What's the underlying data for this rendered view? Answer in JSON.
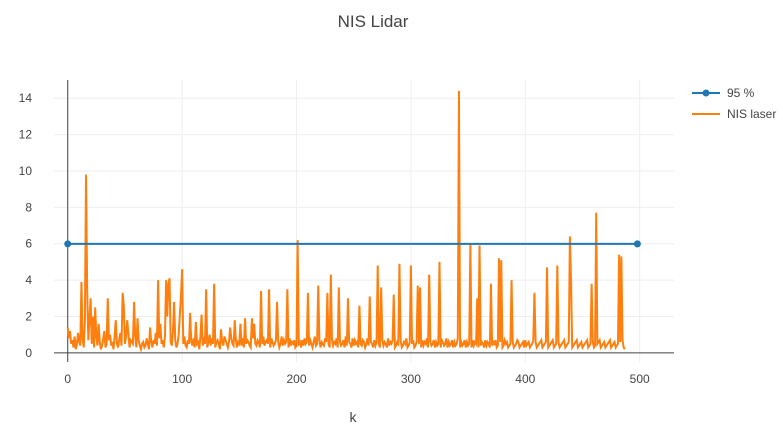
{
  "chart_data": {
    "type": "line",
    "title": "NIS Lidar",
    "xlabel": "k",
    "ylabel": "",
    "xlim": [
      -12,
      530
    ],
    "ylim": [
      -0.5,
      15.0
    ],
    "xticks": [
      0,
      100,
      200,
      300,
      400,
      500
    ],
    "yticks": [
      0,
      2,
      4,
      6,
      8,
      10,
      12,
      14
    ],
    "grid": true,
    "legend_position": "top-right",
    "series": [
      {
        "name": "95 %",
        "color": "#1f77b4",
        "mode": "lines+markers",
        "x": [
          0,
          498
        ],
        "y": [
          5.991,
          5.991
        ]
      },
      {
        "name": "NIS laser",
        "color": "#ff7f0e",
        "mode": "lines",
        "x_start": 0,
        "x_step": 1,
        "y": [
          1.4,
          0.8,
          1.2,
          0.5,
          0.7,
          0.3,
          0.9,
          0.2,
          0.5,
          1.1,
          0.6,
          0.4,
          3.9,
          0.8,
          0.3,
          1.7,
          9.8,
          3.5,
          0.7,
          1.8,
          3.0,
          0.5,
          2.0,
          0.3,
          2.5,
          0.9,
          0.4,
          1.6,
          0.6,
          0.2,
          0.4,
          0.8,
          1.2,
          0.3,
          0.5,
          3.0,
          0.7,
          1.0,
          0.4,
          0.6,
          0.2,
          0.9,
          1.8,
          0.5,
          0.3,
          0.7,
          1.1,
          0.4,
          3.3,
          2.6,
          0.5,
          0.9,
          1.8,
          1.1,
          0.3,
          0.7,
          0.6,
          0.5,
          2.8,
          0.9,
          0.3,
          1.9,
          0.7,
          0.4,
          0.2,
          0.5,
          0.6,
          0.3,
          0.4,
          0.8,
          0.5,
          0.2,
          1.4,
          0.6,
          0.3,
          0.7,
          0.5,
          1.1,
          0.4,
          4.0,
          0.8,
          1.6,
          0.5,
          0.7,
          0.3,
          0.9,
          4.0,
          2.0,
          3.8,
          4.1,
          0.6,
          0.4,
          1.2,
          2.8,
          0.7,
          0.3,
          0.5,
          1.0,
          2.1,
          3.1,
          4.6,
          0.5,
          0.9,
          0.4,
          0.3,
          0.7,
          0.5,
          2.2,
          0.6,
          0.4,
          0.8,
          0.3,
          1.7,
          0.5,
          0.6,
          0.2,
          0.9,
          2.1,
          0.4,
          0.7,
          0.5,
          3.5,
          0.3,
          0.6,
          1.0,
          0.4,
          0.8,
          0.5,
          3.8,
          0.3,
          0.6,
          0.7,
          0.5,
          0.2,
          1.3,
          0.6,
          0.4,
          0.9,
          0.7,
          0.5,
          0.3,
          0.6,
          1.4,
          0.8,
          0.5,
          0.4,
          1.8,
          0.7,
          0.3,
          0.6,
          0.5,
          1.6,
          0.4,
          0.8,
          0.3,
          1.9,
          0.5,
          0.7,
          0.6,
          0.4,
          0.3,
          1.9,
          0.8,
          1.6,
          0.5,
          0.4,
          0.7,
          0.6,
          0.3,
          3.4,
          0.5,
          0.9,
          0.4,
          0.6,
          0.7,
          0.5,
          3.5,
          0.3,
          0.8,
          0.6,
          0.4,
          0.5,
          0.7,
          2.8,
          0.6,
          0.3,
          0.5,
          0.9,
          0.4,
          0.7,
          0.5,
          0.6,
          3.5,
          0.3,
          0.8,
          0.4,
          0.6,
          0.5,
          0.7,
          0.3,
          0.4,
          6.2,
          0.5,
          0.6,
          0.3,
          0.7,
          0.4,
          0.8,
          0.5,
          0.6,
          3.3,
          0.4,
          0.7,
          0.5,
          0.3,
          0.6,
          0.9,
          0.4,
          0.5,
          3.7,
          0.7,
          0.3,
          0.6,
          0.5,
          0.4,
          0.8,
          0.6,
          3.3,
          0.5,
          0.3,
          4.3,
          0.7,
          0.4,
          0.6,
          0.5,
          0.8,
          0.3,
          3.6,
          0.6,
          0.4,
          0.5,
          0.7,
          0.3,
          0.9,
          0.4,
          3.0,
          0.6,
          0.5,
          0.3,
          0.8,
          0.4,
          0.7,
          0.5,
          0.6,
          0.3,
          2.6,
          0.5,
          0.4,
          0.7,
          0.6,
          0.3,
          0.5,
          0.8,
          0.4,
          3.1,
          0.6,
          0.5,
          0.3,
          0.7,
          0.4,
          0.6,
          4.8,
          0.5,
          0.3,
          3.6,
          0.7,
          0.4,
          0.6,
          0.5,
          0.3,
          0.8,
          0.4,
          0.6,
          0.5,
          0.7,
          3.2,
          0.3,
          0.4,
          0.6,
          0.5,
          4.9,
          0.7,
          0.3,
          0.4,
          0.6,
          0.5,
          0.8,
          0.3,
          0.4,
          0.6,
          4.8,
          0.5,
          0.7,
          0.3,
          0.4,
          0.6,
          3.7,
          0.5,
          3.6,
          0.3,
          0.7,
          0.4,
          0.6,
          0.5,
          0.8,
          0.3,
          4.3,
          0.6,
          0.4,
          0.5,
          0.7,
          0.3,
          0.6,
          0.4,
          0.5,
          5.0,
          0.3,
          0.7,
          0.6,
          0.4,
          0.5,
          0.8,
          0.3,
          0.6,
          0.4,
          0.5,
          0.7,
          0.3,
          0.6,
          0.4,
          0.5,
          0.8,
          14.4,
          0.3,
          0.6,
          0.4,
          0.5,
          0.7,
          0.3,
          0.6,
          0.4,
          0.5,
          6.0,
          0.3,
          0.7,
          0.4,
          0.6,
          0.5,
          3.0,
          0.3,
          5.9,
          0.4,
          0.6,
          0.5,
          0.3,
          0.7,
          0.4,
          0.6,
          0.5,
          0.3,
          3.8,
          0.4,
          0.6,
          0.5,
          0.7,
          0.3,
          0.4,
          5.2,
          0.6,
          5.1,
          0.3,
          0.4,
          0.7,
          0.5,
          0.6,
          0.3,
          0.4,
          0.5,
          4.0,
          0.6,
          0.3,
          0.4,
          0.5,
          0.7,
          0.6,
          0.3,
          0.4,
          0.5,
          0.6,
          0.3,
          0.7,
          0.4,
          0.5,
          0.6,
          0.3,
          0.4,
          0.5,
          0.7,
          3.3,
          0.6,
          0.3,
          0.4,
          0.5,
          0.6,
          0.7,
          0.3,
          0.4,
          0.5,
          0.6,
          4.7,
          0.3,
          0.4,
          0.5,
          0.6,
          0.7,
          0.3,
          0.4,
          0.5,
          4.8,
          0.6,
          0.3,
          0.4,
          0.5,
          0.6,
          0.7,
          0.3,
          0.4,
          0.5,
          0.6,
          6.4,
          3.9,
          0.3,
          0.4,
          0.5,
          0.6,
          0.7,
          0.3,
          0.4,
          0.5,
          0.6,
          0.3,
          0.4,
          0.5,
          0.6,
          0.7,
          0.3,
          0.4,
          0.5,
          3.8,
          0.6,
          0.3,
          0.4,
          7.7,
          0.5,
          0.6,
          0.7,
          0.3,
          0.4,
          0.5,
          0.6,
          0.3,
          0.4,
          0.5,
          0.6,
          0.7,
          0.3,
          0.4,
          0.5,
          0.6,
          0.3,
          0.4,
          0.5,
          5.4,
          0.6,
          5.3,
          0.7,
          0.3,
          0.2
        ]
      }
    ]
  }
}
